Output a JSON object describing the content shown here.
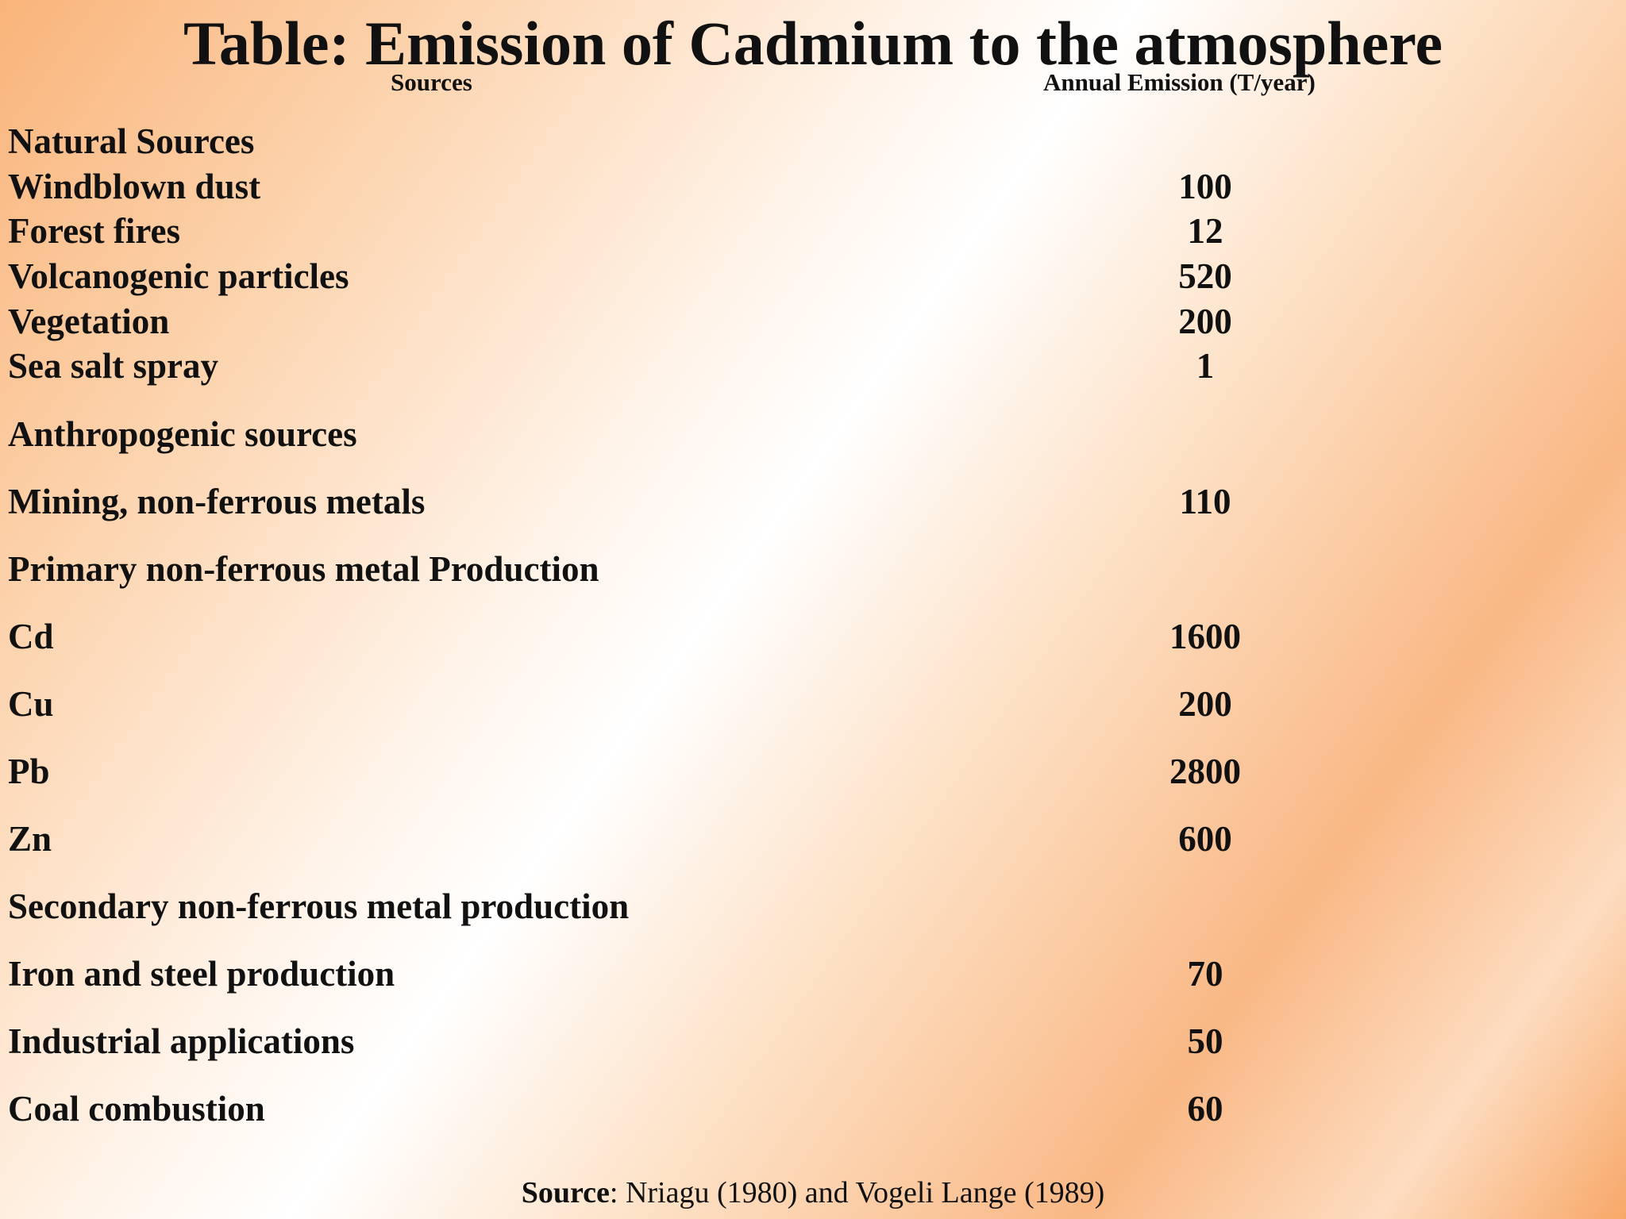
{
  "slide": {
    "title": "Table: Emission of Cadmium to the atmosphere",
    "columns": {
      "sources": "Sources",
      "emission": "Annual Emission (T/year)"
    },
    "rows": [
      {
        "label": "Natural Sources",
        "value": ""
      },
      {
        "label": "Windblown dust",
        "value": "100"
      },
      {
        "label": "Forest fires",
        "value": "12"
      },
      {
        "label": "Volcanogenic particles",
        "value": "520"
      },
      {
        "label": "Vegetation",
        "value": "200"
      },
      {
        "label": "Sea salt spray",
        "value": "1"
      },
      {
        "label": "Anthropogenic sources",
        "value": ""
      },
      {
        "label": "Mining, non-ferrous metals",
        "value": "110"
      },
      {
        "label": "Primary non-ferrous metal Production",
        "value": ""
      },
      {
        "label": "Cd",
        "value": "1600"
      },
      {
        "label": "Cu",
        "value": "200"
      },
      {
        "label": "Pb",
        "value": "2800"
      },
      {
        "label": "Zn",
        "value": "600"
      },
      {
        "label": "Secondary non-ferrous metal production",
        "value": ""
      },
      {
        "label": "Iron and steel production",
        "value": "70"
      },
      {
        "label": "Industrial applications",
        "value": "50"
      },
      {
        "label": "Coal combustion",
        "value": "60"
      }
    ],
    "footer": {
      "source_key": "Source",
      "source_text": ":  Nriagu (1980) and Vogeli Lange (1989)"
    }
  }
}
